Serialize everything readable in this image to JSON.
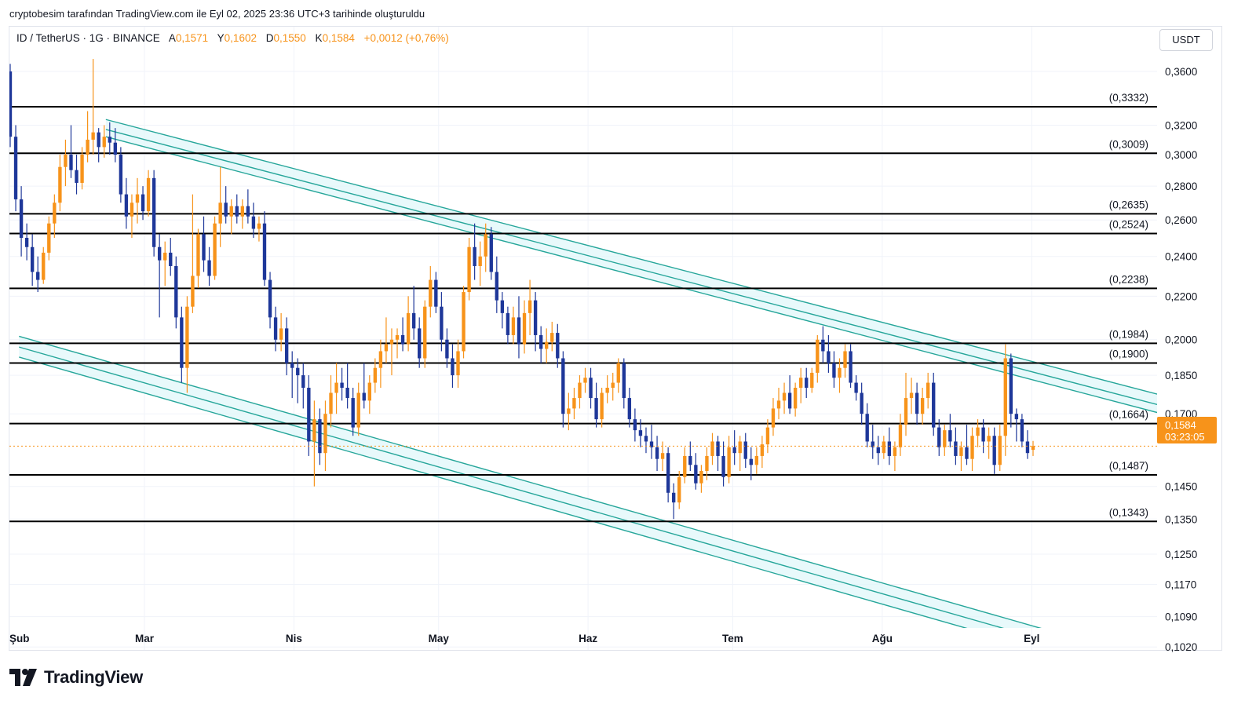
{
  "header": {
    "attribution": "cryptobesim tarafından TradingView.com ile Eyl 02, 2025 23:36 UTC+3 tarihinde oluşturuldu"
  },
  "legend": {
    "symbol": "ID / TetherUS · 1G · BINANCE",
    "open_label": "A",
    "open": "0,1571",
    "high_label": "Y",
    "high": "0,1602",
    "low_label": "D",
    "low": "0,1550",
    "close_label": "K",
    "close": "0,1584",
    "change": "+0,0012 (+0,76%)"
  },
  "currency_button": "USDT",
  "price_tag": {
    "price": "0,1584",
    "countdown": "03:23:05"
  },
  "brand": {
    "logo_text": "TradingView"
  },
  "colors": {
    "up": "#f7931a",
    "down": "#1e3799",
    "channel": "#26a69a",
    "channel_fill": "#e0f7fa",
    "level": "#000000"
  },
  "chart_data": {
    "type": "candlestick",
    "title": "ID / TetherUS · 1G · BINANCE",
    "y_scale": "log",
    "ylim": [
      0.098,
      0.38
    ],
    "y_ticks": [
      "0,3600",
      "0,3200",
      "0,3000",
      "0,2800",
      "0,2600",
      "0,2400",
      "0,2200",
      "0,2000",
      "0,1850",
      "0,1700",
      "0,1450",
      "0,1350",
      "0,1250",
      "0,1170",
      "0,1090",
      "0,1020"
    ],
    "y_tick_values": [
      0.36,
      0.32,
      0.3,
      0.28,
      0.26,
      0.24,
      0.22,
      0.2,
      0.185,
      0.17,
      0.145,
      0.135,
      0.125,
      0.117,
      0.109,
      0.102
    ],
    "x_ticks": [
      "Şub",
      "Mar",
      "Nis",
      "May",
      "Haz",
      "Tem",
      "Ağu",
      "Eyl"
    ],
    "x_tick_days": [
      0,
      28,
      59,
      89,
      120,
      150,
      181,
      212
    ],
    "x_range_days": [
      0,
      238
    ],
    "horizontal_levels": [
      {
        "label": "(0,3332)",
        "value": 0.3332
      },
      {
        "label": "(0,3009)",
        "value": 0.3009
      },
      {
        "label": "(0,2635)",
        "value": 0.2635
      },
      {
        "label": "(0,2524)",
        "value": 0.2524
      },
      {
        "label": "(0,2238)",
        "value": 0.2238
      },
      {
        "label": "(0,1984)",
        "value": 0.1984
      },
      {
        "label": "(0,1900)",
        "value": 0.19
      },
      {
        "label": "(0,1664)",
        "value": 0.1664
      },
      {
        "label": "(0,1487)",
        "value": 0.1487
      },
      {
        "label": "(0,1343)",
        "value": 0.1343
      }
    ],
    "channels": [
      {
        "name": "upper-channel",
        "lines": [
          [
            [
              20,
              0.324
            ],
            [
              238,
              0.1775
            ]
          ],
          [
            [
              20,
              0.317
            ],
            [
              238,
              0.1735
            ]
          ],
          [
            [
              20,
              0.312
            ],
            [
              238,
              0.1705
            ]
          ]
        ]
      },
      {
        "name": "lower-channel",
        "lines": [
          [
            [
              2,
              0.2015
            ],
            [
              238,
              0.0988
            ]
          ],
          [
            [
              2,
              0.1968
            ],
            [
              238,
              0.0965
            ]
          ],
          [
            [
              2,
              0.1925
            ],
            [
              238,
              0.0943
            ]
          ]
        ]
      }
    ],
    "current_price": 0.1584,
    "candles_ohlc": [
      [
        0.36,
        0.366,
        0.305,
        0.312
      ],
      [
        0.312,
        0.32,
        0.265,
        0.272
      ],
      [
        0.272,
        0.28,
        0.24,
        0.25
      ],
      [
        0.25,
        0.258,
        0.238,
        0.245
      ],
      [
        0.245,
        0.252,
        0.225,
        0.232
      ],
      [
        0.232,
        0.24,
        0.222,
        0.228
      ],
      [
        0.228,
        0.245,
        0.226,
        0.242
      ],
      [
        0.242,
        0.262,
        0.238,
        0.258
      ],
      [
        0.258,
        0.275,
        0.25,
        0.27
      ],
      [
        0.27,
        0.3,
        0.265,
        0.292
      ],
      [
        0.292,
        0.31,
        0.28,
        0.3
      ],
      [
        0.3,
        0.32,
        0.285,
        0.29
      ],
      [
        0.29,
        0.3,
        0.275,
        0.282
      ],
      [
        0.282,
        0.305,
        0.278,
        0.3
      ],
      [
        0.3,
        0.33,
        0.295,
        0.31
      ],
      [
        0.31,
        0.37,
        0.3,
        0.315
      ],
      [
        0.315,
        0.318,
        0.295,
        0.305
      ],
      [
        0.305,
        0.32,
        0.298,
        0.312
      ],
      [
        0.312,
        0.322,
        0.3,
        0.308
      ],
      [
        0.308,
        0.318,
        0.295,
        0.3
      ],
      [
        0.3,
        0.305,
        0.27,
        0.275
      ],
      [
        0.275,
        0.285,
        0.255,
        0.262
      ],
      [
        0.262,
        0.275,
        0.25,
        0.27
      ],
      [
        0.27,
        0.285,
        0.258,
        0.275
      ],
      [
        0.275,
        0.28,
        0.26,
        0.265
      ],
      [
        0.265,
        0.29,
        0.262,
        0.285
      ],
      [
        0.285,
        0.29,
        0.24,
        0.245
      ],
      [
        0.245,
        0.252,
        0.21,
        0.238
      ],
      [
        0.238,
        0.248,
        0.225,
        0.242
      ],
      [
        0.242,
        0.25,
        0.23,
        0.235
      ],
      [
        0.235,
        0.24,
        0.205,
        0.21
      ],
      [
        0.21,
        0.215,
        0.182,
        0.188
      ],
      [
        0.188,
        0.22,
        0.178,
        0.215
      ],
      [
        0.215,
        0.275,
        0.212,
        0.23
      ],
      [
        0.23,
        0.255,
        0.224,
        0.252
      ],
      [
        0.252,
        0.262,
        0.232,
        0.238
      ],
      [
        0.238,
        0.245,
        0.225,
        0.23
      ],
      [
        0.23,
        0.262,
        0.228,
        0.258
      ],
      [
        0.258,
        0.292,
        0.245,
        0.27
      ],
      [
        0.27,
        0.28,
        0.258,
        0.262
      ],
      [
        0.262,
        0.272,
        0.252,
        0.268
      ],
      [
        0.268,
        0.275,
        0.258,
        0.262
      ],
      [
        0.262,
        0.272,
        0.255,
        0.268
      ],
      [
        0.268,
        0.278,
        0.258,
        0.262
      ],
      [
        0.262,
        0.27,
        0.25,
        0.255
      ],
      [
        0.255,
        0.262,
        0.248,
        0.258
      ],
      [
        0.258,
        0.265,
        0.225,
        0.228
      ],
      [
        0.228,
        0.232,
        0.205,
        0.21
      ],
      [
        0.21,
        0.215,
        0.195,
        0.2
      ],
      [
        0.2,
        0.212,
        0.195,
        0.205
      ],
      [
        0.205,
        0.21,
        0.185,
        0.19
      ],
      [
        0.19,
        0.195,
        0.176,
        0.188
      ],
      [
        0.188,
        0.192,
        0.174,
        0.185
      ],
      [
        0.185,
        0.19,
        0.172,
        0.18
      ],
      [
        0.18,
        0.185,
        0.155,
        0.16
      ],
      [
        0.16,
        0.175,
        0.145,
        0.168
      ],
      [
        0.168,
        0.172,
        0.152,
        0.156
      ],
      [
        0.156,
        0.175,
        0.15,
        0.17
      ],
      [
        0.17,
        0.185,
        0.165,
        0.178
      ],
      [
        0.178,
        0.19,
        0.17,
        0.182
      ],
      [
        0.182,
        0.188,
        0.175,
        0.18
      ],
      [
        0.18,
        0.19,
        0.172,
        0.176
      ],
      [
        0.176,
        0.18,
        0.162,
        0.165
      ],
      [
        0.165,
        0.182,
        0.162,
        0.178
      ],
      [
        0.178,
        0.19,
        0.172,
        0.175
      ],
      [
        0.175,
        0.185,
        0.17,
        0.182
      ],
      [
        0.182,
        0.192,
        0.178,
        0.188
      ],
      [
        0.188,
        0.2,
        0.18,
        0.195
      ],
      [
        0.195,
        0.21,
        0.19,
        0.198
      ],
      [
        0.198,
        0.205,
        0.185,
        0.2
      ],
      [
        0.2,
        0.205,
        0.192,
        0.202
      ],
      [
        0.202,
        0.21,
        0.195,
        0.198
      ],
      [
        0.198,
        0.22,
        0.195,
        0.212
      ],
      [
        0.212,
        0.225,
        0.2,
        0.205
      ],
      [
        0.205,
        0.21,
        0.188,
        0.192
      ],
      [
        0.192,
        0.218,
        0.188,
        0.215
      ],
      [
        0.215,
        0.235,
        0.21,
        0.228
      ],
      [
        0.228,
        0.232,
        0.212,
        0.215
      ],
      [
        0.215,
        0.222,
        0.195,
        0.2
      ],
      [
        0.2,
        0.205,
        0.188,
        0.192
      ],
      [
        0.192,
        0.198,
        0.18,
        0.185
      ],
      [
        0.185,
        0.2,
        0.18,
        0.195
      ],
      [
        0.195,
        0.225,
        0.192,
        0.222
      ],
      [
        0.222,
        0.25,
        0.218,
        0.245
      ],
      [
        0.245,
        0.258,
        0.228,
        0.235
      ],
      [
        0.235,
        0.248,
        0.225,
        0.24
      ],
      [
        0.24,
        0.258,
        0.232,
        0.252
      ],
      [
        0.252,
        0.256,
        0.228,
        0.232
      ],
      [
        0.232,
        0.24,
        0.212,
        0.218
      ],
      [
        0.218,
        0.222,
        0.205,
        0.212
      ],
      [
        0.212,
        0.215,
        0.198,
        0.202
      ],
      [
        0.202,
        0.215,
        0.198,
        0.21
      ],
      [
        0.21,
        0.22,
        0.192,
        0.198
      ],
      [
        0.198,
        0.218,
        0.194,
        0.212
      ],
      [
        0.212,
        0.228,
        0.202,
        0.218
      ],
      [
        0.218,
        0.222,
        0.195,
        0.202
      ],
      [
        0.202,
        0.206,
        0.19,
        0.196
      ],
      [
        0.196,
        0.205,
        0.19,
        0.199
      ],
      [
        0.199,
        0.208,
        0.195,
        0.203
      ],
      [
        0.203,
        0.207,
        0.188,
        0.192
      ],
      [
        0.192,
        0.195,
        0.165,
        0.17
      ],
      [
        0.17,
        0.178,
        0.164,
        0.172
      ],
      [
        0.172,
        0.18,
        0.168,
        0.176
      ],
      [
        0.176,
        0.185,
        0.172,
        0.182
      ],
      [
        0.182,
        0.188,
        0.178,
        0.184
      ],
      [
        0.184,
        0.188,
        0.172,
        0.176
      ],
      [
        0.176,
        0.182,
        0.165,
        0.168
      ],
      [
        0.168,
        0.18,
        0.165,
        0.178
      ],
      [
        0.178,
        0.185,
        0.174,
        0.18
      ],
      [
        0.18,
        0.186,
        0.175,
        0.182
      ],
      [
        0.182,
        0.192,
        0.178,
        0.19
      ],
      [
        0.19,
        0.192,
        0.172,
        0.176
      ],
      [
        0.176,
        0.18,
        0.165,
        0.168
      ],
      [
        0.168,
        0.172,
        0.16,
        0.164
      ],
      [
        0.164,
        0.168,
        0.158,
        0.162
      ],
      [
        0.162,
        0.165,
        0.156,
        0.16
      ],
      [
        0.16,
        0.166,
        0.154,
        0.158
      ],
      [
        0.158,
        0.162,
        0.15,
        0.154
      ],
      [
        0.154,
        0.16,
        0.15,
        0.156
      ],
      [
        0.156,
        0.158,
        0.14,
        0.143
      ],
      [
        0.143,
        0.146,
        0.135,
        0.14
      ],
      [
        0.14,
        0.15,
        0.138,
        0.148
      ],
      [
        0.148,
        0.158,
        0.146,
        0.155
      ],
      [
        0.155,
        0.16,
        0.15,
        0.152
      ],
      [
        0.152,
        0.156,
        0.144,
        0.146
      ],
      [
        0.146,
        0.152,
        0.143,
        0.15
      ],
      [
        0.15,
        0.158,
        0.147,
        0.155
      ],
      [
        0.155,
        0.163,
        0.152,
        0.16
      ],
      [
        0.16,
        0.162,
        0.15,
        0.155
      ],
      [
        0.155,
        0.16,
        0.145,
        0.148
      ],
      [
        0.148,
        0.162,
        0.146,
        0.158
      ],
      [
        0.158,
        0.164,
        0.152,
        0.156
      ],
      [
        0.156,
        0.162,
        0.15,
        0.16
      ],
      [
        0.16,
        0.163,
        0.151,
        0.154
      ],
      [
        0.154,
        0.158,
        0.147,
        0.152
      ],
      [
        0.152,
        0.158,
        0.149,
        0.155
      ],
      [
        0.155,
        0.162,
        0.151,
        0.159
      ],
      [
        0.159,
        0.168,
        0.156,
        0.165
      ],
      [
        0.165,
        0.176,
        0.162,
        0.172
      ],
      [
        0.172,
        0.18,
        0.168,
        0.175
      ],
      [
        0.175,
        0.182,
        0.17,
        0.178
      ],
      [
        0.178,
        0.185,
        0.17,
        0.172
      ],
      [
        0.172,
        0.182,
        0.169,
        0.18
      ],
      [
        0.18,
        0.188,
        0.174,
        0.184
      ],
      [
        0.184,
        0.188,
        0.176,
        0.18
      ],
      [
        0.18,
        0.188,
        0.178,
        0.186
      ],
      [
        0.186,
        0.202,
        0.182,
        0.2
      ],
      [
        0.2,
        0.206,
        0.19,
        0.195
      ],
      [
        0.195,
        0.202,
        0.186,
        0.19
      ],
      [
        0.19,
        0.195,
        0.18,
        0.184
      ],
      [
        0.184,
        0.192,
        0.178,
        0.188
      ],
      [
        0.188,
        0.198,
        0.184,
        0.195
      ],
      [
        0.195,
        0.198,
        0.18,
        0.182
      ],
      [
        0.182,
        0.185,
        0.175,
        0.178
      ],
      [
        0.178,
        0.182,
        0.166,
        0.17
      ],
      [
        0.17,
        0.174,
        0.158,
        0.16
      ],
      [
        0.16,
        0.166,
        0.154,
        0.158
      ],
      [
        0.158,
        0.162,
        0.152,
        0.156
      ],
      [
        0.156,
        0.162,
        0.154,
        0.16
      ],
      [
        0.16,
        0.165,
        0.152,
        0.155
      ],
      [
        0.155,
        0.16,
        0.15,
        0.158
      ],
      [
        0.158,
        0.17,
        0.155,
        0.166
      ],
      [
        0.166,
        0.186,
        0.162,
        0.176
      ],
      [
        0.176,
        0.184,
        0.17,
        0.178
      ],
      [
        0.178,
        0.182,
        0.166,
        0.17
      ],
      [
        0.17,
        0.18,
        0.166,
        0.176
      ],
      [
        0.176,
        0.186,
        0.172,
        0.182
      ],
      [
        0.182,
        0.186,
        0.162,
        0.165
      ],
      [
        0.165,
        0.168,
        0.155,
        0.158
      ],
      [
        0.158,
        0.166,
        0.155,
        0.164
      ],
      [
        0.164,
        0.17,
        0.158,
        0.16
      ],
      [
        0.16,
        0.165,
        0.152,
        0.155
      ],
      [
        0.155,
        0.16,
        0.15,
        0.158
      ],
      [
        0.158,
        0.166,
        0.152,
        0.154
      ],
      [
        0.154,
        0.165,
        0.15,
        0.162
      ],
      [
        0.162,
        0.168,
        0.158,
        0.165
      ],
      [
        0.165,
        0.168,
        0.156,
        0.16
      ],
      [
        0.16,
        0.165,
        0.154,
        0.162
      ],
      [
        0.162,
        0.165,
        0.149,
        0.152
      ],
      [
        0.152,
        0.166,
        0.15,
        0.162
      ],
      [
        0.162,
        0.198,
        0.155,
        0.192
      ],
      [
        0.192,
        0.194,
        0.165,
        0.17
      ],
      [
        0.17,
        0.172,
        0.16,
        0.168
      ],
      [
        0.168,
        0.17,
        0.158,
        0.16
      ],
      [
        0.16,
        0.164,
        0.154,
        0.156
      ],
      [
        0.1571,
        0.1602,
        0.155,
        0.1584
      ]
    ]
  }
}
